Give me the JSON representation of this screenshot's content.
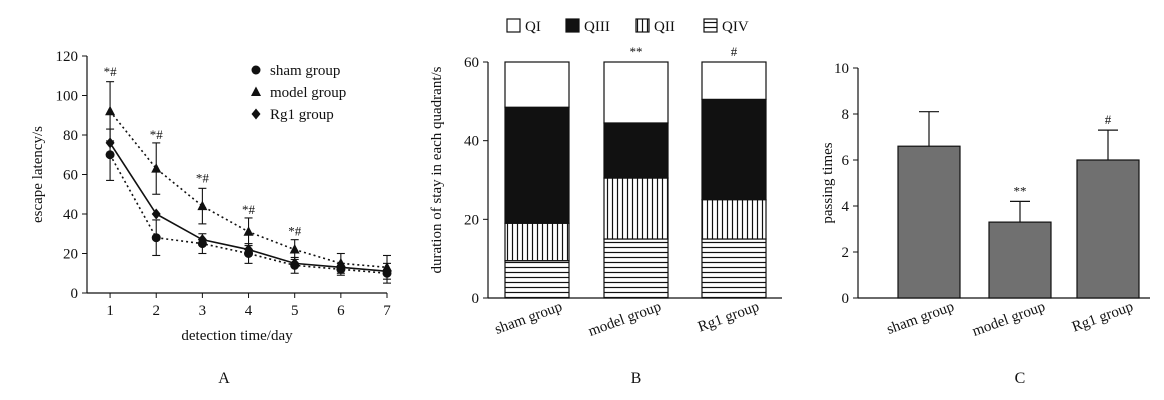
{
  "chart_data": [
    {
      "type": "line",
      "panel_label": "A",
      "xlabel": "detection time/day",
      "ylabel": "escape latency/s",
      "x": [
        1,
        2,
        3,
        4,
        5,
        6,
        7
      ],
      "xlim": [
        0.5,
        7
      ],
      "ylim": [
        0,
        120
      ],
      "yticks": [
        0,
        20,
        40,
        60,
        80,
        100,
        120
      ],
      "legend_position": "top-right",
      "series": [
        {
          "name": "sham group",
          "marker": "circle",
          "line_style": "dotted",
          "values": [
            70,
            28,
            25,
            20,
            14,
            12,
            10
          ],
          "errors": [
            13,
            9,
            5,
            5,
            4,
            3,
            5
          ]
        },
        {
          "name": "model group",
          "marker": "triangle",
          "line_style": "dotted",
          "values": [
            92,
            63,
            44,
            31,
            22,
            15,
            13
          ],
          "errors": [
            15,
            13,
            9,
            7,
            5,
            5,
            6
          ]
        },
        {
          "name": "Rg1 group",
          "marker": "diamond",
          "line_style": "solid",
          "values": [
            76,
            40,
            27,
            22,
            15,
            13,
            11
          ],
          "errors": [
            0,
            0,
            0,
            0,
            0,
            0,
            0
          ]
        }
      ],
      "annotations": [
        {
          "x": 1,
          "y": 110,
          "text": "*#"
        },
        {
          "x": 2,
          "y": 78,
          "text": "*#"
        },
        {
          "x": 3,
          "y": 56,
          "text": "*#"
        },
        {
          "x": 4,
          "y": 40,
          "text": "*#"
        },
        {
          "x": 5,
          "y": 29,
          "text": "*#"
        }
      ]
    },
    {
      "type": "bar",
      "stacked": true,
      "panel_label": "B",
      "ylabel": "duration of stay in each quadrant/s",
      "categories": [
        "sham group",
        "model group",
        "Rg1 group"
      ],
      "ylim": [
        0,
        60
      ],
      "yticks": [
        0,
        20,
        40,
        60
      ],
      "legend_position": "top",
      "series": [
        {
          "name": "QIV",
          "pattern": "horizontal-stripes",
          "values": [
            9.5,
            15,
            15
          ]
        },
        {
          "name": "QII",
          "pattern": "vertical-stripes",
          "values": [
            9.5,
            15.5,
            10
          ]
        },
        {
          "name": "QIII",
          "pattern": "solid-black",
          "values": [
            29.5,
            14,
            25.5
          ]
        },
        {
          "name": "QI",
          "pattern": "white",
          "values": [
            11.5,
            15.5,
            9.5
          ]
        }
      ],
      "legend_order": [
        "QI",
        "QIII",
        "QII",
        "QIV"
      ],
      "annotations": [
        {
          "category": "model group",
          "text": "**"
        },
        {
          "category": "Rg1 group",
          "text": "#"
        }
      ]
    },
    {
      "type": "bar",
      "panel_label": "C",
      "ylabel": "passing times",
      "categories": [
        "sham group",
        "model group",
        "Rg1 group"
      ],
      "values": [
        6.6,
        3.3,
        6.0
      ],
      "errors": [
        1.5,
        0.9,
        1.3
      ],
      "ylim": [
        0,
        10
      ],
      "yticks": [
        0,
        2,
        4,
        6,
        8,
        10
      ],
      "bar_color": "#707070",
      "annotations": [
        {
          "category": "model group",
          "text": "**"
        },
        {
          "category": "Rg1 group",
          "text": "#"
        }
      ]
    }
  ]
}
